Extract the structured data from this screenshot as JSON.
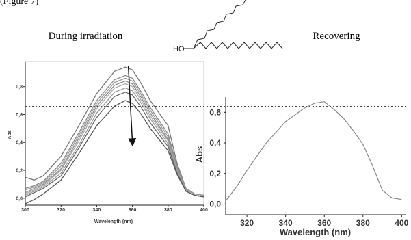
{
  "header": {
    "fragment": "(Figure 7)",
    "during_label": "During irradiation",
    "recovering_label": "Recovering"
  },
  "molecule": {
    "label": "HO"
  },
  "chart_data": [
    {
      "type": "line",
      "title": "During irradiation",
      "xlabel": "Wavelength (nm)",
      "ylabel": "Abs",
      "xlim": [
        300,
        400
      ],
      "ylim": [
        -0.05,
        0.98
      ],
      "xticks": [
        300,
        320,
        340,
        360,
        380,
        400
      ],
      "xtick_labels": [
        "300",
        "320",
        "340",
        "360",
        "380",
        "400"
      ],
      "yticks": [
        0.0,
        0.2,
        0.4,
        0.6,
        0.8
      ],
      "ytick_labels": [
        "0,0",
        "0,2",
        "0,4",
        "0,6",
        "0,8"
      ],
      "x": [
        300,
        305,
        310,
        320,
        330,
        340,
        350,
        356,
        360,
        365,
        370,
        380,
        385,
        390,
        395,
        400
      ],
      "series": [
        {
          "values": [
            0.15,
            0.13,
            0.16,
            0.3,
            0.52,
            0.75,
            0.91,
            0.94,
            0.92,
            0.82,
            0.7,
            0.52,
            0.25,
            0.07,
            0.03,
            0.02
          ]
        },
        {
          "values": [
            0.07,
            0.09,
            0.12,
            0.25,
            0.47,
            0.7,
            0.85,
            0.88,
            0.86,
            0.76,
            0.65,
            0.46,
            0.23,
            0.07,
            0.03,
            0.02
          ]
        },
        {
          "values": [
            0.06,
            0.08,
            0.11,
            0.23,
            0.45,
            0.68,
            0.83,
            0.86,
            0.84,
            0.74,
            0.63,
            0.44,
            0.22,
            0.07,
            0.03,
            0.02
          ]
        },
        {
          "values": [
            0.04,
            0.07,
            0.1,
            0.21,
            0.43,
            0.66,
            0.81,
            0.84,
            0.82,
            0.72,
            0.61,
            0.42,
            0.21,
            0.06,
            0.03,
            0.02
          ]
        },
        {
          "values": [
            0.03,
            0.06,
            0.09,
            0.2,
            0.41,
            0.64,
            0.79,
            0.82,
            0.8,
            0.7,
            0.59,
            0.41,
            0.2,
            0.06,
            0.03,
            0.02
          ]
        },
        {
          "values": [
            0.02,
            0.05,
            0.08,
            0.18,
            0.38,
            0.61,
            0.76,
            0.79,
            0.77,
            0.68,
            0.57,
            0.39,
            0.19,
            0.06,
            0.03,
            0.02
          ]
        },
        {
          "values": [
            0.01,
            0.04,
            0.07,
            0.16,
            0.36,
            0.58,
            0.73,
            0.76,
            0.74,
            0.65,
            0.54,
            0.37,
            0.18,
            0.05,
            0.02,
            0.01
          ]
        },
        {
          "values": [
            -0.04,
            -0.01,
            0.03,
            0.13,
            0.32,
            0.52,
            0.66,
            0.7,
            0.68,
            0.6,
            0.5,
            0.34,
            0.17,
            0.05,
            0.02,
            0.01
          ]
        }
      ],
      "arrow": {
        "x": 360,
        "y_from": 0.95,
        "y_to": 0.4
      },
      "reference_y": 0.67
    },
    {
      "type": "line",
      "title": "Recovering",
      "xlabel": "Wavelength (nm)",
      "ylabel": "Abs",
      "xlim": [
        309,
        402
      ],
      "ylim": [
        -0.07,
        0.7
      ],
      "xticks": [
        320,
        340,
        360,
        380,
        400
      ],
      "xtick_labels": [
        "320",
        "340",
        "360",
        "380",
        "400"
      ],
      "yticks": [
        0.0,
        0.2,
        0.4,
        0.6
      ],
      "ytick_labels": [
        "0,0",
        "0,2",
        "0,4",
        "0,6"
      ],
      "x": [
        309,
        315,
        320,
        325,
        330,
        340,
        350,
        355,
        360,
        365,
        370,
        375,
        380,
        385,
        390,
        395,
        400
      ],
      "series": [
        {
          "values": [
            0.02,
            0.12,
            0.22,
            0.31,
            0.4,
            0.54,
            0.63,
            0.66,
            0.67,
            0.62,
            0.56,
            0.48,
            0.39,
            0.25,
            0.09,
            0.04,
            0.03
          ]
        }
      ],
      "reference_y": 0.67
    }
  ]
}
